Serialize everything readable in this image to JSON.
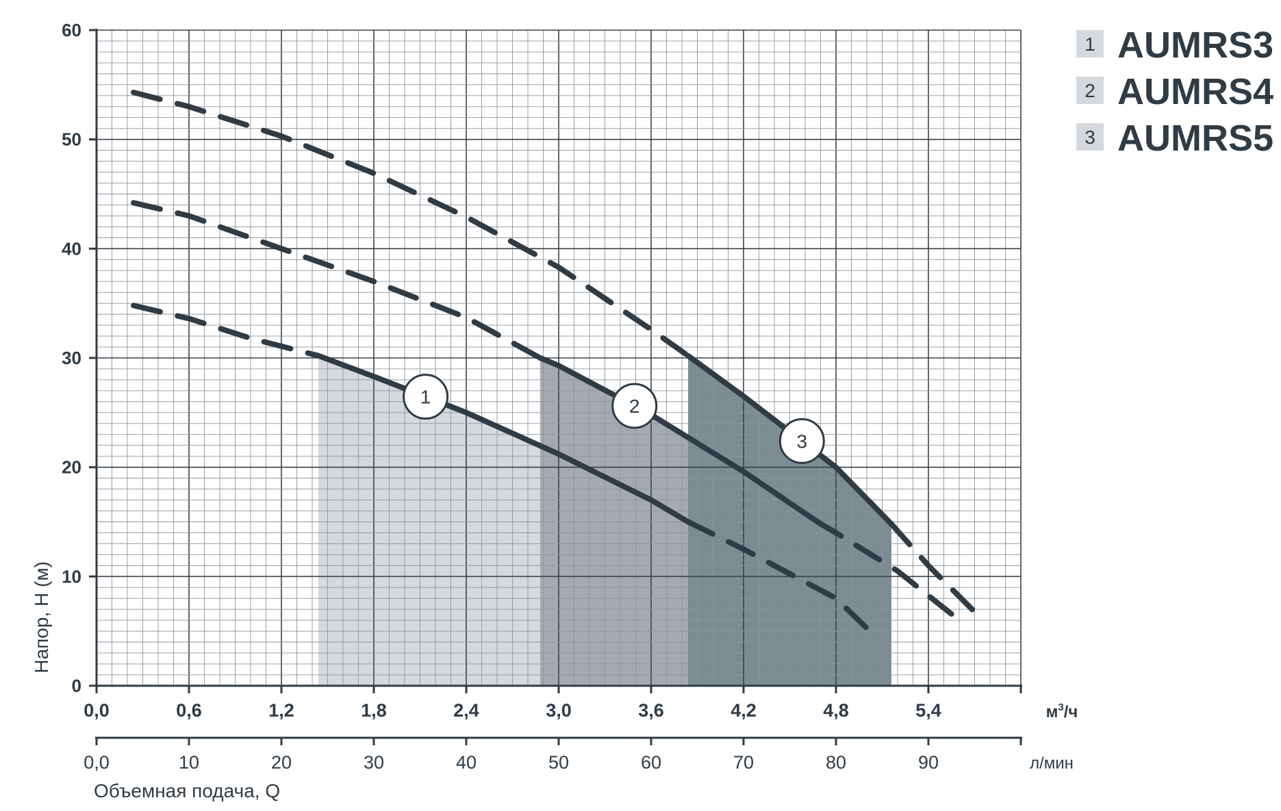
{
  "chart_data": {
    "type": "line",
    "title": "",
    "ylabel": "Напор, H (м)",
    "xlabel": "Объемная подача, Q",
    "x_unit": "м³/ч",
    "x_unit_base": "м",
    "x_unit_sup": "3",
    "x_unit_tail": "/ч",
    "x2_unit": "л/мин",
    "ylim": [
      0,
      60
    ],
    "xlim": [
      0,
      6.0
    ],
    "x2lim": [
      0,
      100
    ],
    "y_ticks": [
      "0",
      "10",
      "20",
      "30",
      "40",
      "50",
      "60"
    ],
    "x_ticks": [
      "0,0",
      "0,6",
      "1,2",
      "1,8",
      "2,4",
      "3,0",
      "3,6",
      "4,2",
      "4,8",
      "5,4"
    ],
    "x2_ticks": [
      "0,0",
      "10",
      "20",
      "30",
      "40",
      "50",
      "60",
      "70",
      "80",
      "90"
    ],
    "grid": true,
    "legend_position": "top-right",
    "series": [
      {
        "name": "AUMRS3",
        "label": "1",
        "color": "#2f3b45",
        "area_fill": "#d5d9dd",
        "working_range": [
          1.44,
          3.84
        ],
        "x": [
          0.24,
          0.6,
          1.0,
          1.44,
          1.8,
          2.4,
          3.0,
          3.6,
          3.84,
          4.2,
          4.8,
          5.02
        ],
        "y": [
          34.8,
          33.6,
          31.8,
          30.2,
          28.3,
          25.0,
          21.2,
          17.0,
          15.0,
          12.5,
          8.0,
          5.0
        ]
      },
      {
        "name": "AUMRS4",
        "label": "2",
        "color": "#2f3b45",
        "area_fill": "#a5aab2",
        "working_range": [
          2.88,
          4.68
        ],
        "x": [
          0.24,
          0.6,
          1.2,
          1.8,
          2.4,
          2.88,
          3.0,
          3.6,
          4.2,
          4.68,
          4.8,
          5.2,
          5.6
        ],
        "y": [
          44.2,
          43.0,
          40.0,
          37.0,
          33.7,
          30.0,
          29.3,
          24.8,
          19.6,
          15.0,
          14.0,
          10.5,
          6.0
        ]
      },
      {
        "name": "AUMRS5",
        "label": "3",
        "color": "#2f3b45",
        "area_fill": "#7b8c92",
        "working_range": [
          3.84,
          5.16
        ],
        "x": [
          0.24,
          0.6,
          1.2,
          1.8,
          2.4,
          3.0,
          3.6,
          3.84,
          4.2,
          4.8,
          5.16,
          5.4,
          5.74
        ],
        "y": [
          54.3,
          53.0,
          50.3,
          46.9,
          42.9,
          38.3,
          32.6,
          30.2,
          26.5,
          20.0,
          14.8,
          11.0,
          6.2
        ]
      }
    ]
  }
}
